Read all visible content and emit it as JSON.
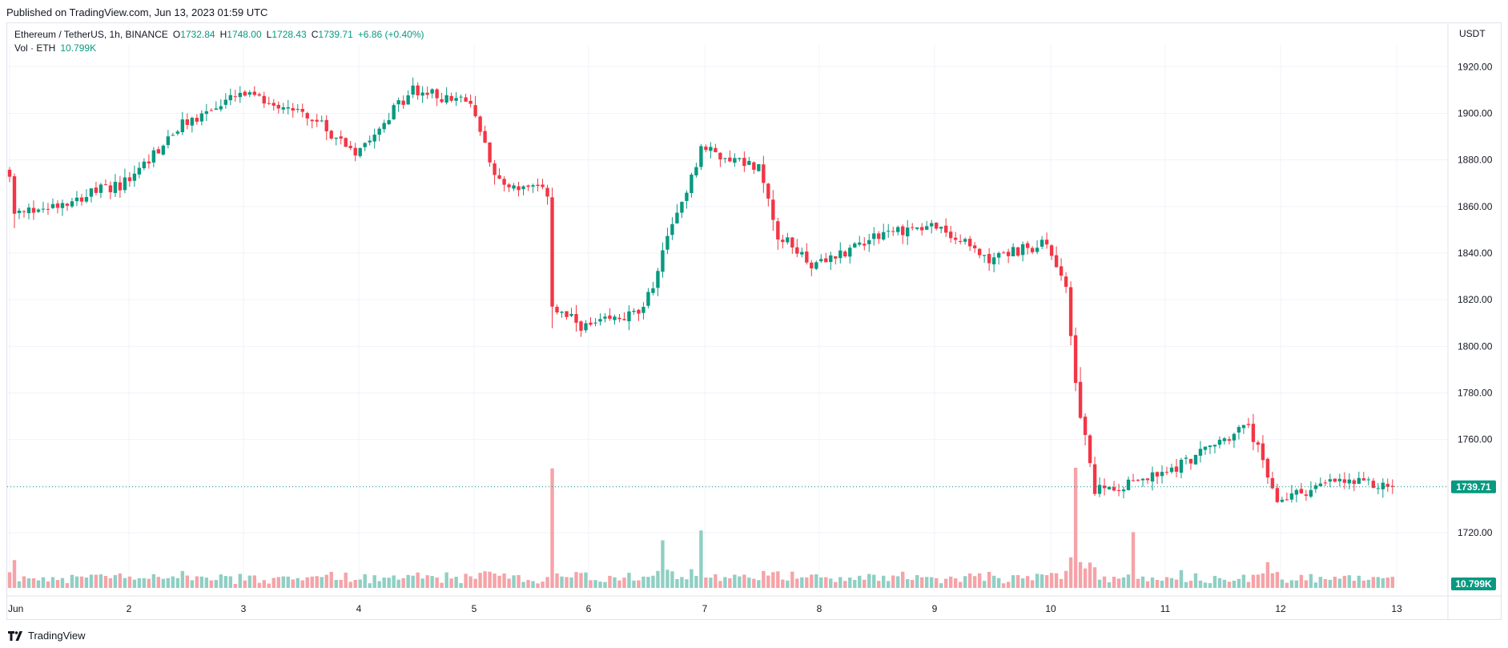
{
  "header": {
    "published": "Published on TradingView.com, Jun 13, 2023 01:59 UTC"
  },
  "legend": {
    "symbol": "Ethereum / TetherUS, 1h, BINANCE",
    "open_label": "O",
    "open": "1732.84",
    "high_label": "H",
    "high": "1748.00",
    "low_label": "L",
    "low": "1728.43",
    "close_label": "C",
    "close": "1739.71",
    "change": "+6.86 (+0.40%)",
    "vol_label": "Vol · ETH",
    "vol": "10.799K"
  },
  "axis_unit": "USDT",
  "footer": {
    "brand": "TradingView",
    "logo_icon": "tradingview-logo-icon"
  },
  "colors": {
    "up": "#089981",
    "down": "#f23645",
    "vol_up": "#8fcfc4",
    "vol_down": "#f5a3a8",
    "grid": "#f0f3fa",
    "price_line": "#089981"
  },
  "chart_data": {
    "type": "candlestick",
    "title": "",
    "xlabel": "",
    "ylabel": "",
    "ylim": [
      1708,
      1928
    ],
    "y_ticks": [
      1720,
      1740,
      1760,
      1780,
      1800,
      1820,
      1840,
      1860,
      1880,
      1900,
      1920
    ],
    "y_tick_labels": [
      "1720.00",
      "1740.00",
      "1760.00",
      "1780.00",
      "1800.00",
      "1820.00",
      "1840.00",
      "1860.00",
      "1880.00",
      "1900.00",
      "1920.00"
    ],
    "x_ticks": [
      "Jun",
      "2",
      "3",
      "4",
      "5",
      "6",
      "7",
      "8",
      "9",
      "10",
      "11",
      "12",
      "13"
    ],
    "last_price": 1739.71,
    "last_price_label": "1739.71",
    "last_volume_label": "10.799K",
    "grid": true,
    "close_path": [
      [
        "Jun",
        1872
      ],
      [
        "Jun 1 12:00",
        1856
      ],
      [
        "2",
        1870
      ],
      [
        "2 12:00",
        1895
      ],
      [
        "3",
        1908
      ],
      [
        "3 12:00",
        1902
      ],
      [
        "4",
        1884
      ],
      [
        "4 12:00",
        1910
      ],
      [
        "5",
        1904
      ],
      [
        "5 06:00",
        1870
      ],
      [
        "5 16:00",
        1866
      ],
      [
        "5 17:00",
        1816
      ],
      [
        "6",
        1808
      ],
      [
        "6 12:00",
        1815
      ],
      [
        "6 17:00",
        1845
      ],
      [
        "7",
        1885
      ],
      [
        "7 12:00",
        1877
      ],
      [
        "7 16:00",
        1848
      ],
      [
        "8",
        1834
      ],
      [
        "8 12:00",
        1848
      ],
      [
        "9",
        1852
      ],
      [
        "9 12:00",
        1838
      ],
      [
        "10",
        1844
      ],
      [
        "10 04:00",
        1826
      ],
      [
        "10 06:00",
        1782
      ],
      [
        "10 10:00",
        1738
      ],
      [
        "11",
        1745
      ],
      [
        "11 18:00",
        1766
      ],
      [
        "12",
        1734
      ],
      [
        "12 12:00",
        1742
      ],
      [
        "13",
        1739.71
      ]
    ],
    "volume_spikes": [
      [
        "5 17:00",
        "high"
      ],
      [
        "6 16:00",
        "medium"
      ],
      [
        "7",
        "medium"
      ],
      [
        "10 06:00",
        "high"
      ],
      [
        "10 18:00",
        "medium"
      ],
      [
        "11 22:00",
        "low"
      ]
    ]
  }
}
